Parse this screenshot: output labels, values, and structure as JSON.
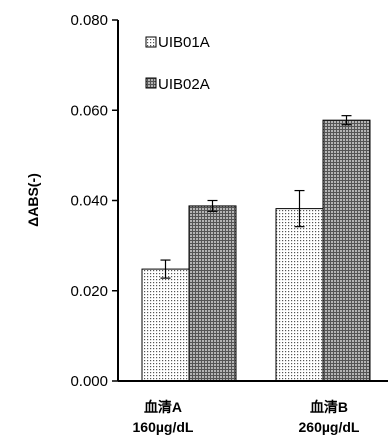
{
  "chart_data": {
    "type": "bar",
    "title": "",
    "xlabel": "",
    "ylabel": "ΔABS(-)",
    "ylim": [
      0,
      0.08
    ],
    "yticks": [
      "0.000",
      "0.020",
      "0.040",
      "0.060",
      "0.080"
    ],
    "categories": [
      {
        "line1": "血清A",
        "line2": "160µg/dL"
      },
      {
        "line1": "血清B",
        "line2": "260µg/dL"
      }
    ],
    "series": [
      {
        "name": "UIB01A",
        "values": [
          0.0248,
          0.0382
        ],
        "errors": [
          0.002,
          0.004
        ],
        "pattern": "dots",
        "color": "#e8e8e8"
      },
      {
        "name": "UIB02A",
        "values": [
          0.0388,
          0.0578
        ],
        "errors": [
          0.0012,
          0.001
        ],
        "pattern": "crosshatch",
        "color": "#9a9a9a"
      }
    ],
    "legend_placement": "top-left",
    "grid": false
  }
}
